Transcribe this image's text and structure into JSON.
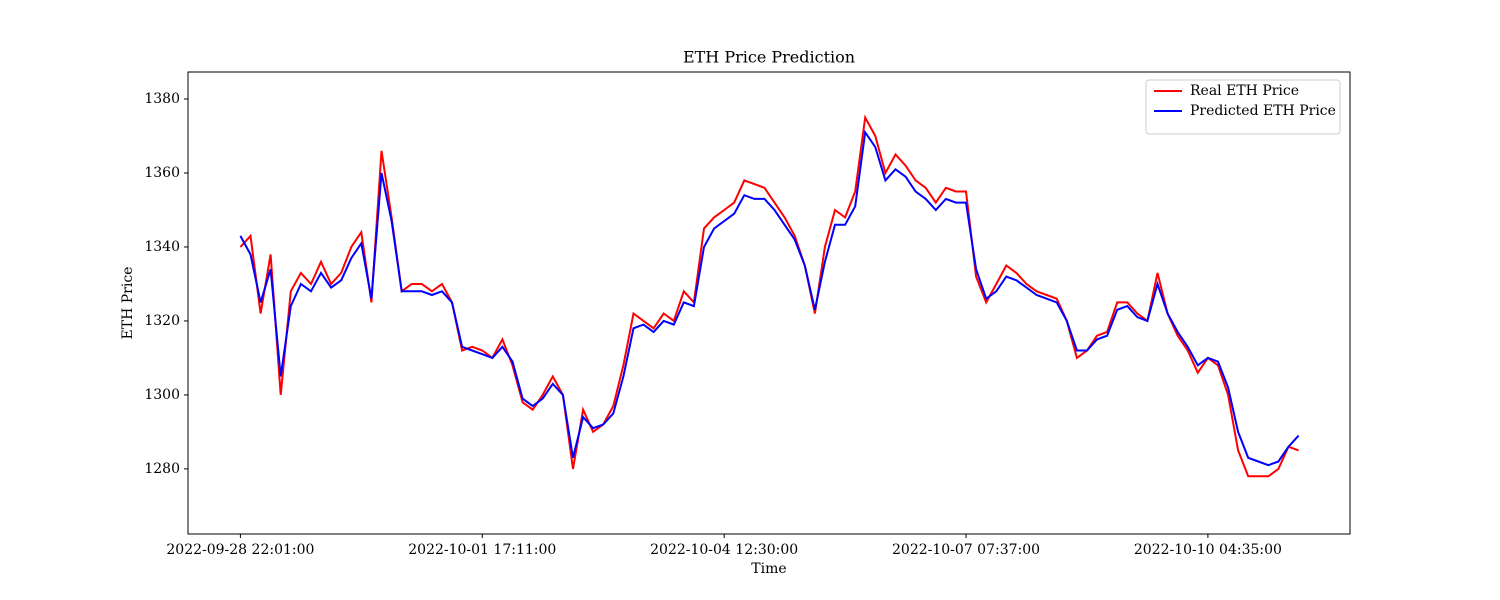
{
  "chart_data": {
    "type": "line",
    "title": "ETH Price Prediction",
    "x_label": "Time",
    "y_label": "ETH Price",
    "x": [
      0,
      1,
      2,
      3,
      4,
      5,
      6,
      7,
      8,
      9,
      10,
      11,
      12,
      13,
      14,
      15,
      16,
      17,
      18,
      19,
      20,
      21,
      22,
      23,
      24,
      25,
      26,
      27,
      28,
      29,
      30,
      31,
      32,
      33,
      34,
      35,
      36,
      37,
      38,
      39,
      40,
      41,
      42,
      43,
      44,
      45,
      46,
      47,
      48,
      49,
      50,
      51,
      52,
      53,
      54,
      55,
      56,
      57,
      58,
      59,
      60,
      61,
      62,
      63,
      64,
      65,
      66,
      67,
      68,
      69,
      70,
      71,
      72,
      73,
      74,
      75,
      76,
      77,
      78,
      79,
      80,
      81,
      82,
      83,
      84,
      85,
      86,
      87,
      88,
      89,
      90,
      91,
      92,
      93,
      94,
      95,
      96,
      97,
      98,
      99,
      100,
      101,
      102,
      103,
      104,
      105
    ],
    "series": [
      {
        "name": "Real ETH Price",
        "color": "#ff0000",
        "values": [
          1340,
          1343,
          1322,
          1338,
          1300,
          1328,
          1333,
          1330,
          1336,
          1330,
          1333,
          1340,
          1344,
          1325,
          1366,
          1348,
          1328,
          1330,
          1330,
          1328,
          1330,
          1325,
          1312,
          1313,
          1312,
          1310,
          1315,
          1308,
          1298,
          1296,
          1300,
          1305,
          1300,
          1280,
          1296,
          1290,
          1292,
          1297,
          1308,
          1322,
          1320,
          1318,
          1322,
          1320,
          1328,
          1325,
          1345,
          1348,
          1350,
          1352,
          1358,
          1357,
          1356,
          1352,
          1348,
          1343,
          1335,
          1322,
          1340,
          1350,
          1348,
          1355,
          1375,
          1370,
          1360,
          1365,
          1362,
          1358,
          1356,
          1352,
          1356,
          1355,
          1355,
          1332,
          1325,
          1330,
          1335,
          1333,
          1330,
          1328,
          1327,
          1326,
          1320,
          1310,
          1312,
          1316,
          1317,
          1325,
          1325,
          1322,
          1320,
          1333,
          1322,
          1316,
          1312,
          1306,
          1310,
          1308,
          1300,
          1285,
          1278,
          1278,
          1278,
          1280,
          1286,
          1285
        ]
      },
      {
        "name": "Predicted ETH Price",
        "color": "#0000ff",
        "values": [
          1343,
          1338,
          1325,
          1334,
          1305,
          1324,
          1330,
          1328,
          1333,
          1329,
          1331,
          1337,
          1341,
          1326,
          1360,
          1347,
          1328,
          1328,
          1328,
          1327,
          1328,
          1325,
          1313,
          1312,
          1311,
          1310,
          1313,
          1309,
          1299,
          1297,
          1299,
          1303,
          1300,
          1283,
          1294,
          1291,
          1292,
          1295,
          1305,
          1318,
          1319,
          1317,
          1320,
          1319,
          1325,
          1324,
          1340,
          1345,
          1347,
          1349,
          1354,
          1353,
          1353,
          1350,
          1346,
          1342,
          1335,
          1323,
          1336,
          1346,
          1346,
          1351,
          1371,
          1367,
          1358,
          1361,
          1359,
          1355,
          1353,
          1350,
          1353,
          1352,
          1352,
          1334,
          1326,
          1328,
          1332,
          1331,
          1329,
          1327,
          1326,
          1325,
          1320,
          1312,
          1312,
          1315,
          1316,
          1323,
          1324,
          1321,
          1320,
          1330,
          1322,
          1317,
          1313,
          1308,
          1310,
          1309,
          1302,
          1290,
          1283,
          1282,
          1281,
          1282,
          1286,
          1289
        ]
      }
    ],
    "xlim": [
      -5.2,
      110.1
    ],
    "ylim": [
      1262.4,
      1387.3
    ],
    "xticks": [
      {
        "value": 0,
        "label": "2022-09-28 22:01:00"
      },
      {
        "value": 24,
        "label": "2022-10-01 17:11:00"
      },
      {
        "value": 48,
        "label": "2022-10-04 12:30:00"
      },
      {
        "value": 72,
        "label": "2022-10-07 07:37:00"
      },
      {
        "value": 96,
        "label": "2022-10-10 04:35:00"
      }
    ],
    "yticks": [
      1280,
      1300,
      1320,
      1340,
      1360,
      1380
    ],
    "grid": false,
    "legend": "upper right"
  }
}
